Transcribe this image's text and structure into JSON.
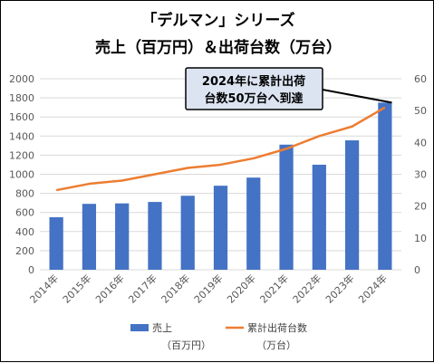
{
  "chart_data": {
    "type": "bar+line",
    "title_line1": "「デルマン」シリーズ",
    "title_line2": "売上（百万円）＆出荷台数（万台）",
    "categories": [
      "2014年",
      "2015年",
      "2016年",
      "2017年",
      "2018年",
      "2019年",
      "2020年",
      "2021年",
      "2022年",
      "2023年",
      "2024年"
    ],
    "series": [
      {
        "name": "売上",
        "unit": "（百万円）",
        "type": "bar",
        "axis": "left",
        "color": "#4472C4",
        "values": [
          550,
          690,
          695,
          710,
          775,
          880,
          965,
          1310,
          1100,
          1355,
          1750
        ]
      },
      {
        "name": "累計出荷台数",
        "unit": "（万台）",
        "type": "line",
        "axis": "right",
        "color": "#ED7D31",
        "values": [
          25,
          27,
          28,
          30,
          32,
          33,
          35,
          38,
          42,
          45,
          51
        ]
      }
    ],
    "y_left": {
      "min": 0,
      "max": 2000,
      "step": 200,
      "ticks": [
        "0",
        "200",
        "400",
        "600",
        "800",
        "1000",
        "1200",
        "1400",
        "1600",
        "1800",
        "2000"
      ]
    },
    "y_right": {
      "min": 0,
      "max": 60,
      "step": 10,
      "ticks": [
        "0",
        "10",
        "20",
        "30",
        "40",
        "50",
        "60"
      ]
    },
    "grid": "horizontal",
    "legend_position": "bottom",
    "annotation": {
      "line1": "2024年に累計出荷",
      "line2": "台数50万台へ到達",
      "target_category": "2024年"
    }
  }
}
